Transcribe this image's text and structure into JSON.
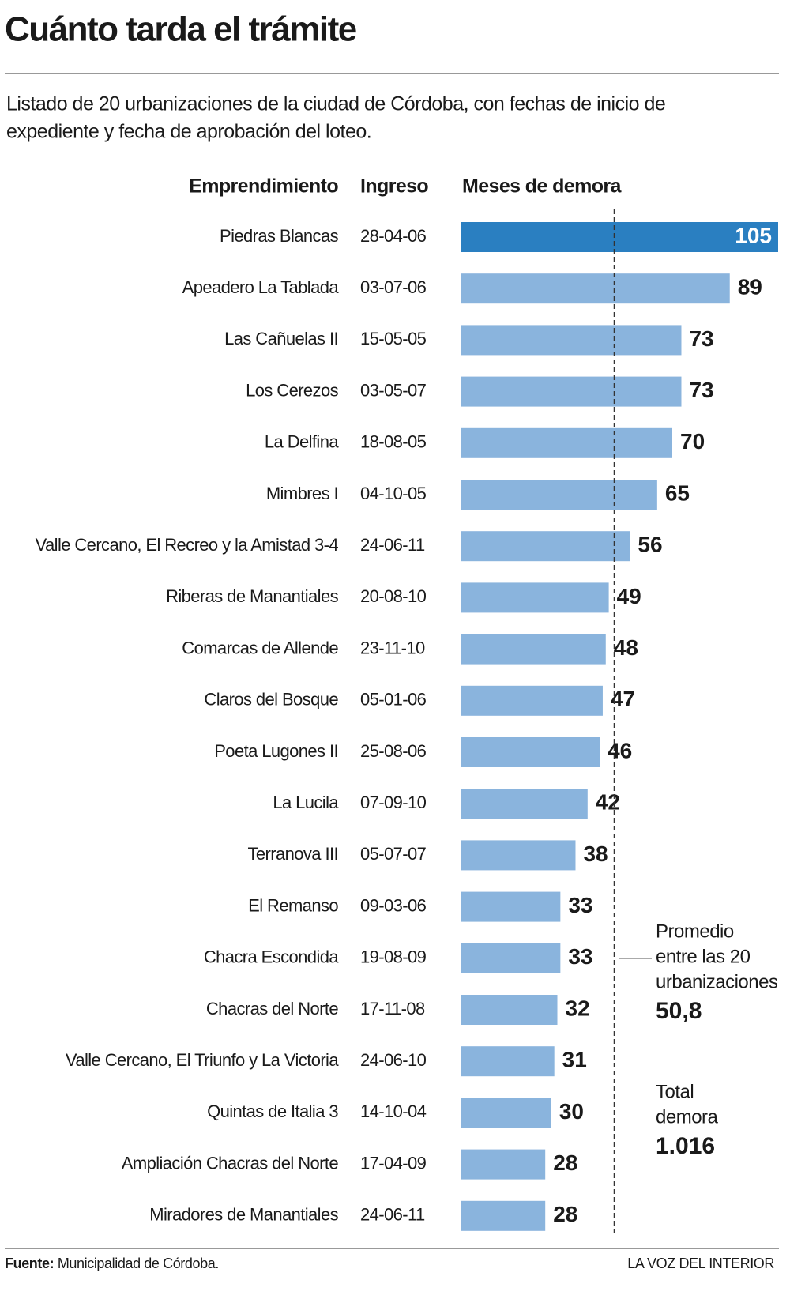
{
  "chart_data": {
    "type": "bar",
    "title": "Cuánto tarda el trámite",
    "subtitle": [
      "Listado de 20 urbanizaciones de la ciudad de Córdoba, con fechas de inicio de",
      "expediente y fecha de aprobación del loteo."
    ],
    "columns": [
      "Emprendimiento",
      "Ingreso",
      "Meses de demora"
    ],
    "categories": [
      "Piedras Blancas",
      "Apeadero La Tablada",
      "Las Cañuelas II",
      "Los Cerezos",
      "La Delfina",
      "Mimbres I",
      "Valle Cercano, El Recreo y la Amistad 3-4",
      "Riberas de Manantiales",
      "Comarcas de Allende",
      "Claros del Bosque",
      "Poeta Lugones II",
      "La Lucila",
      "Terranova III",
      "El Remanso",
      "Chacra Escondida",
      "Chacras del Norte",
      "Valle Cercano, El Triunfo y La Victoria",
      "Quintas de Italia 3",
      "Ampliación Chacras del Norte",
      "Miradores de Manantiales"
    ],
    "dates": [
      "28-04-06",
      "03-07-06",
      "15-05-05",
      "03-05-07",
      "18-08-05",
      "04-10-05",
      "24-06-11",
      "20-08-10",
      "23-11-10",
      "05-01-06",
      "25-08-06",
      "07-09-10",
      "05-07-07",
      "09-03-06",
      "19-08-09",
      "17-11-08",
      "24-06-10",
      "14-10-04",
      "17-04-09",
      "24-06-11"
    ],
    "values": [
      105,
      89,
      73,
      73,
      70,
      65,
      56,
      49,
      48,
      47,
      46,
      42,
      38,
      33,
      33,
      32,
      31,
      30,
      28,
      28
    ],
    "colors": [
      "#2a7fc1",
      "#8ab4dd",
      "#8ab4dd",
      "#8ab4dd",
      "#8ab4dd",
      "#8ab4dd",
      "#8ab4dd",
      "#8ab4dd",
      "#8ab4dd",
      "#8ab4dd",
      "#8ab4dd",
      "#8ab4dd",
      "#8ab4dd",
      "#8ab4dd",
      "#8ab4dd",
      "#8ab4dd",
      "#8ab4dd",
      "#8ab4dd",
      "#8ab4dd",
      "#8ab4dd"
    ],
    "average": {
      "label": [
        "Promedio",
        "entre las 20",
        "urbanizaciones"
      ],
      "value": 50.8,
      "value_label": "50,8"
    },
    "total": {
      "label": [
        "Total",
        "demora"
      ],
      "value": 1016,
      "value_label": "1.016"
    },
    "source": {
      "label": "Fuente:",
      "text": "Municipalidad de Córdoba."
    },
    "credit": "LA VOZ DEL INTERIOR"
  }
}
